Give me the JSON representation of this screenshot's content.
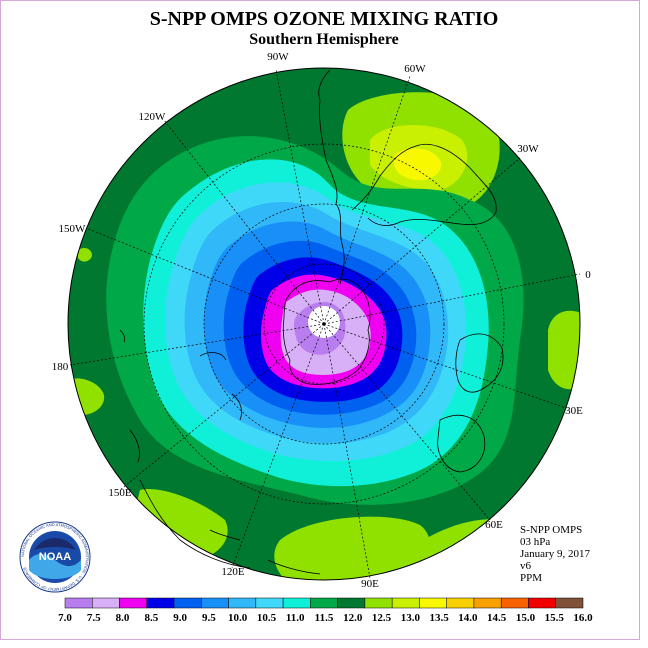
{
  "title": "S-NPP OMPS OZONE MIXING RATIO",
  "subtitle": "Southern Hemisphere",
  "longitude_labels": [
    "90W",
    "60W",
    "30W",
    "0",
    "30E",
    "60E",
    "90E",
    "120E",
    "150E",
    "180",
    "150W",
    "120W"
  ],
  "info": {
    "instrument": "S-NPP OMPS",
    "level": "03 hPa",
    "date": "January 9, 2017",
    "version": "v6",
    "units": "PPM"
  },
  "logo": {
    "text": "NOAA",
    "ring_text": "NATIONAL OCEANIC AND ATMOSPHERIC ADMINISTRATION · U.S. DEPARTMENT OF COMMERCE"
  },
  "colorbar": {
    "tick_labels": [
      "7.0",
      "7.5",
      "8.0",
      "8.5",
      "9.0",
      "9.5",
      "10.0",
      "10.5",
      "11.0",
      "11.5",
      "12.0",
      "12.5",
      "13.0",
      "13.5",
      "14.0",
      "14.5",
      "15.0",
      "15.5",
      "16.0"
    ],
    "colors": [
      "#b87ef0",
      "#d8b0f8",
      "#f000f0",
      "#0000e8",
      "#0060f0",
      "#1890f8",
      "#30b8f8",
      "#40d8f8",
      "#10f0d8",
      "#00a848",
      "#007830",
      "#90e000",
      "#c8f000",
      "#f8f800",
      "#f8d000",
      "#f8a000",
      "#f86000",
      "#f00000",
      "#805038"
    ]
  },
  "map_colors": {
    "base": "#007830",
    "ring_11_5": "#00a848",
    "ring_11": "#10f0d8",
    "ring_10_5": "#40d8f8",
    "ring_10": "#30b8f8",
    "ring_9_5": "#1890f8",
    "ring_9": "#0060f0",
    "ring_8_5": "#0000e8",
    "ring_8": "#f000f0",
    "ring_7_5": "#d8b0f8",
    "ring_7": "#b87ef0",
    "hi_12_5": "#90e000",
    "hi_13": "#c8f000",
    "hi_13_5": "#f8f800"
  }
}
